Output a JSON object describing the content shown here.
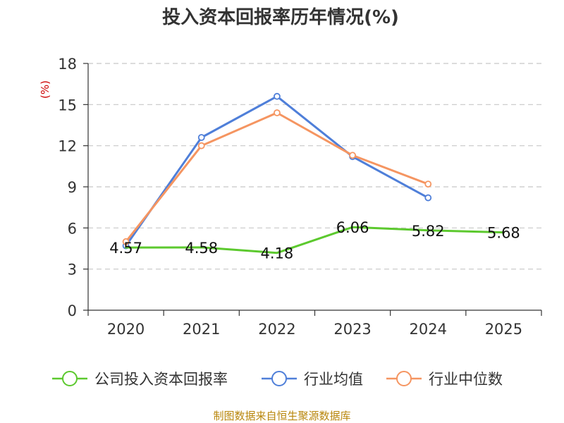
{
  "chart_data": {
    "type": "line",
    "title": "投入资本回报率历年情况(%)",
    "ylabel": "(%)",
    "xlabel": "",
    "categories": [
      "2020",
      "2021",
      "2022",
      "2023",
      "2024",
      "2025"
    ],
    "ylim": [
      0,
      18
    ],
    "yticks": [
      0,
      3,
      6,
      9,
      12,
      15,
      18
    ],
    "grid": true,
    "legend_position": "bottom",
    "series": [
      {
        "name": "公司投入资本回报率",
        "color": "#5cc92e",
        "values": [
          4.57,
          4.58,
          4.18,
          6.06,
          5.82,
          5.68
        ],
        "labels": [
          "4.57",
          "4.58",
          "4.18",
          "6.06",
          "5.82",
          "5.68"
        ],
        "markers": false
      },
      {
        "name": "行业均值",
        "color": "#4f7fd9",
        "values": [
          4.7,
          12.6,
          15.6,
          11.2,
          8.2,
          null
        ],
        "markers": true
      },
      {
        "name": "行业中位数",
        "color": "#f59561",
        "values": [
          5.0,
          12.0,
          14.4,
          11.3,
          9.2,
          null
        ],
        "markers": true
      }
    ],
    "source": "制图数据来自恒生聚源数据库"
  }
}
